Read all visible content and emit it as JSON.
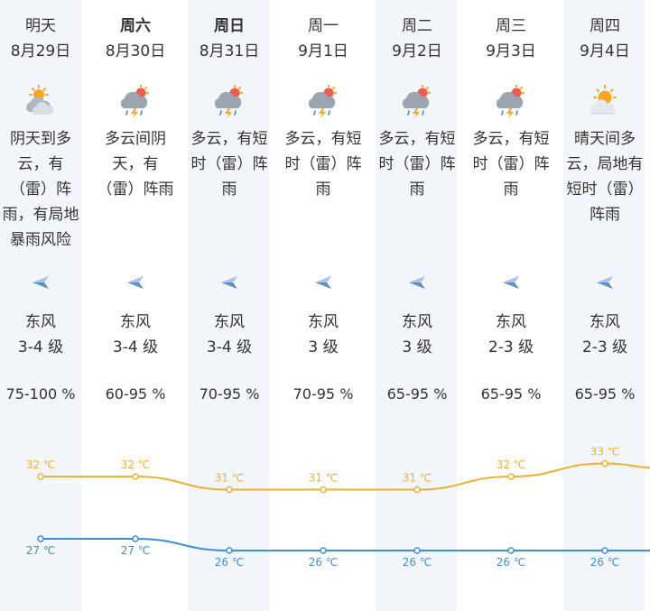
{
  "colors": {
    "column_bg": "#f2f5fa",
    "high_temp": "#f0b030",
    "low_temp": "#3a90d8",
    "text": "#333333",
    "wind_icon": "#5b8fc9"
  },
  "days": [
    {
      "weekday": "明天",
      "bold": false,
      "date": "8月29日",
      "icon": "cloudy-sun-icon",
      "desc": "阴天到多云，有（雷）阵雨，有局地暴雨风险",
      "wind_dir": "东风",
      "wind_level": "3-4 级",
      "humidity": "75-100 %"
    },
    {
      "weekday": "周六",
      "bold": true,
      "date": "8月30日",
      "icon": "thunderstorm-icon",
      "desc": "多云间阴天，有（雷）阵雨",
      "wind_dir": "东风",
      "wind_level": "3-4 级",
      "humidity": "60-95 %"
    },
    {
      "weekday": "周日",
      "bold": true,
      "date": "8月31日",
      "icon": "thunderstorm-icon",
      "desc": "多云，有短时（雷）阵雨",
      "wind_dir": "东风",
      "wind_level": "3-4 级",
      "humidity": "70-95 %"
    },
    {
      "weekday": "周一",
      "bold": false,
      "date": "9月1日",
      "icon": "thunderstorm-icon",
      "desc": "多云，有短时（雷）阵雨",
      "wind_dir": "东风",
      "wind_level": "3 级",
      "humidity": "70-95 %"
    },
    {
      "weekday": "周二",
      "bold": false,
      "date": "9月2日",
      "icon": "thunderstorm-icon",
      "desc": "多云，有短时（雷）阵雨",
      "wind_dir": "东风",
      "wind_level": "3 级",
      "humidity": "65-95 %"
    },
    {
      "weekday": "周三",
      "bold": false,
      "date": "9月3日",
      "icon": "thunderstorm-icon",
      "desc": "多云，有短时（雷）阵雨",
      "wind_dir": "东风",
      "wind_level": "2-3 级",
      "humidity": "65-95 %"
    },
    {
      "weekday": "周四",
      "bold": false,
      "date": "9月4日",
      "icon": "sun-cloud-icon",
      "desc": "晴天间多云，局地有短时（雷）阵雨",
      "wind_dir": "东风",
      "wind_level": "2-3 级",
      "humidity": "65-95 %"
    }
  ],
  "chart_data": {
    "type": "line",
    "x": [
      "8月29日",
      "8月30日",
      "8月31日",
      "9月1日",
      "9月2日",
      "9月3日",
      "9月4日"
    ],
    "unit": "℃",
    "series": [
      {
        "values": [
          32,
          32,
          31,
          31,
          31,
          32,
          33
        ]
      },
      {
        "values": [
          27,
          27,
          26,
          26,
          26,
          26,
          26
        ]
      }
    ]
  }
}
